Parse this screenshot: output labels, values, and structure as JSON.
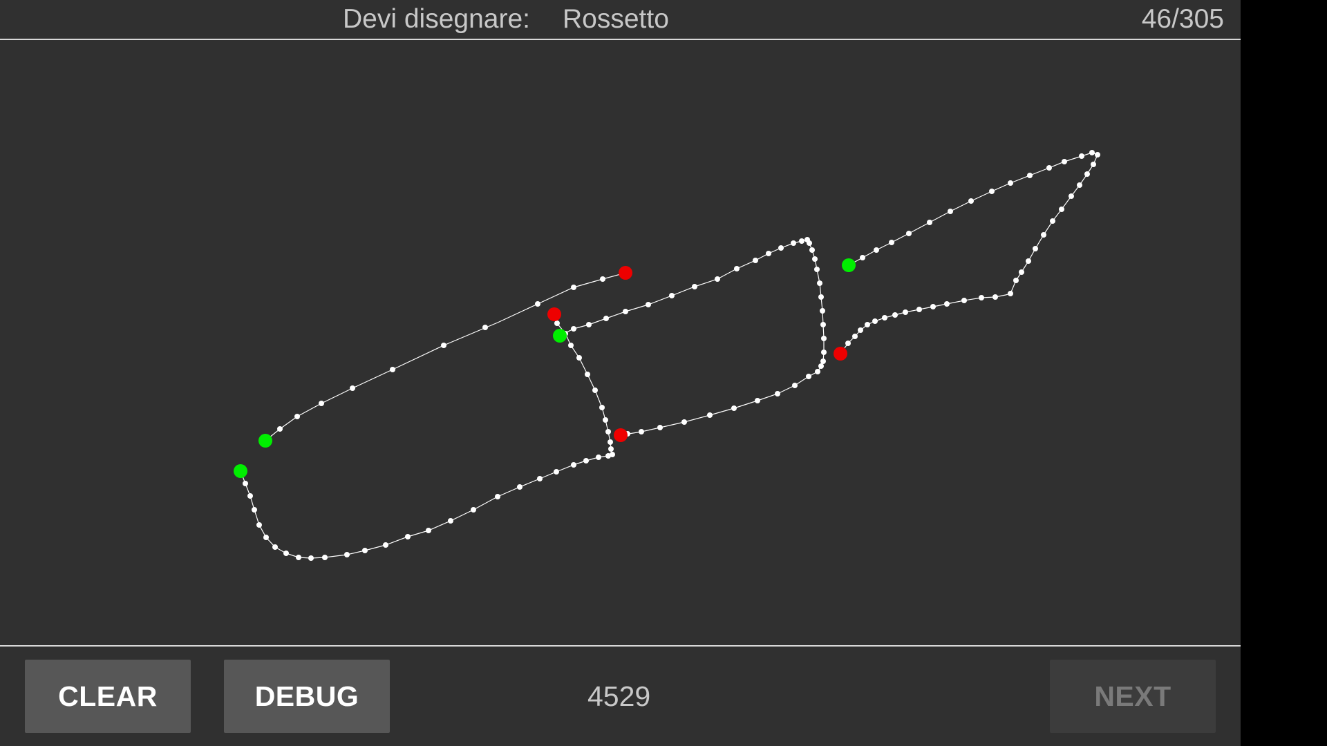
{
  "header": {
    "prompt_label": "Devi disegnare:",
    "prompt_word": "Rossetto",
    "progress": "46/305"
  },
  "footer": {
    "clear_label": "CLEAR",
    "debug_label": "DEBUG",
    "counter": "4529",
    "next_label": "NEXT"
  },
  "colors": {
    "background": "#303030",
    "stroke": "#ffffff",
    "stroke_start": "#00ee00",
    "stroke_end": "#ee0000",
    "button": "#575757",
    "button_disabled": "#3c3c3c"
  },
  "icons": {
    "stroke_start_marker": "green-dot",
    "stroke_end_marker": "red-dot"
  },
  "next_enabled": false
}
